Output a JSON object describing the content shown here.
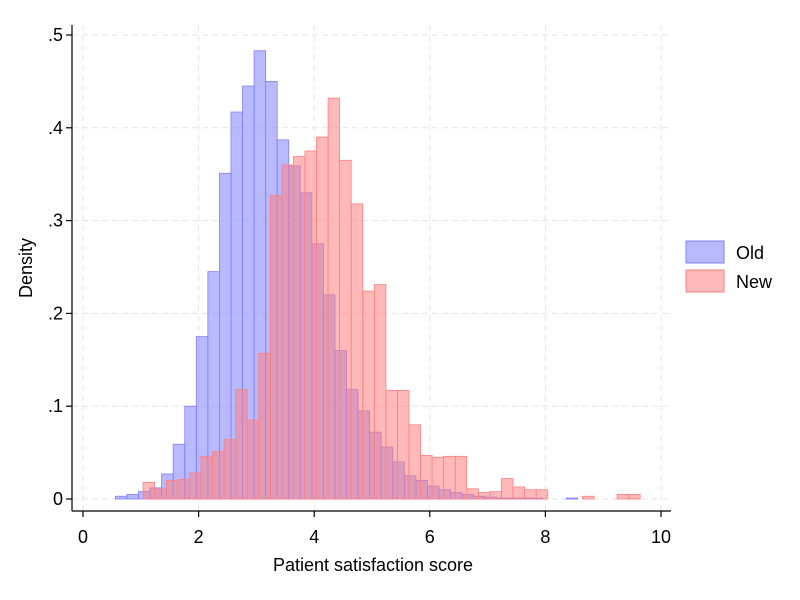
{
  "chart_data": {
    "type": "bar",
    "subtype": "overlaid-histogram",
    "title": "",
    "xlabel": "Patient satisfaction score",
    "ylabel": "Density",
    "xlim": [
      0,
      10
    ],
    "ylim": [
      0,
      0.5
    ],
    "xticks": [
      {
        "value": 0,
        "label": "0"
      },
      {
        "value": 2,
        "label": "2"
      },
      {
        "value": 4,
        "label": "4"
      },
      {
        "value": 6,
        "label": "6"
      },
      {
        "value": 8,
        "label": "8"
      },
      {
        "value": 10,
        "label": "10"
      }
    ],
    "yticks": [
      {
        "value": 0,
        "label": "0"
      },
      {
        "value": 0.1,
        "label": ".1"
      },
      {
        "value": 0.2,
        "label": ".2"
      },
      {
        "value": 0.3,
        "label": ".3"
      },
      {
        "value": 0.4,
        "label": ".4"
      },
      {
        "value": 0.5,
        "label": ".5"
      }
    ],
    "grid": true,
    "legend_position": "right",
    "series": [
      {
        "name": "Old",
        "color": "#8080ff",
        "bin_width": 0.2,
        "bins": [
          {
            "x0": 0.56,
            "v": 0.003
          },
          {
            "x0": 0.76,
            "v": 0.005
          },
          {
            "x0": 0.96,
            "v": 0.008
          },
          {
            "x0": 1.16,
            "v": 0.012
          },
          {
            "x0": 1.36,
            "v": 0.027
          },
          {
            "x0": 1.56,
            "v": 0.059
          },
          {
            "x0": 1.76,
            "v": 0.1
          },
          {
            "x0": 1.96,
            "v": 0.175
          },
          {
            "x0": 2.16,
            "v": 0.245
          },
          {
            "x0": 2.36,
            "v": 0.351
          },
          {
            "x0": 2.56,
            "v": 0.417
          },
          {
            "x0": 2.76,
            "v": 0.445
          },
          {
            "x0": 2.96,
            "v": 0.483
          },
          {
            "x0": 3.16,
            "v": 0.45
          },
          {
            "x0": 3.36,
            "v": 0.387
          },
          {
            "x0": 3.56,
            "v": 0.359
          },
          {
            "x0": 3.76,
            "v": 0.33
          },
          {
            "x0": 3.96,
            "v": 0.275
          },
          {
            "x0": 4.16,
            "v": 0.22
          },
          {
            "x0": 4.36,
            "v": 0.16
          },
          {
            "x0": 4.56,
            "v": 0.118
          },
          {
            "x0": 4.76,
            "v": 0.095
          },
          {
            "x0": 4.96,
            "v": 0.072
          },
          {
            "x0": 5.16,
            "v": 0.056
          },
          {
            "x0": 5.36,
            "v": 0.04
          },
          {
            "x0": 5.56,
            "v": 0.025
          },
          {
            "x0": 5.76,
            "v": 0.02
          },
          {
            "x0": 5.96,
            "v": 0.014
          },
          {
            "x0": 6.16,
            "v": 0.01
          },
          {
            "x0": 6.36,
            "v": 0.007
          },
          {
            "x0": 6.56,
            "v": 0.005
          },
          {
            "x0": 6.76,
            "v": 0.003
          },
          {
            "x0": 6.96,
            "v": 0.002
          },
          {
            "x0": 7.16,
            "v": 0.001
          },
          {
            "x0": 7.36,
            "v": 0.001
          },
          {
            "x0": 7.56,
            "v": 0.001
          },
          {
            "x0": 7.76,
            "v": 0.001
          },
          {
            "x0": 8.36,
            "v": 0.001
          }
        ]
      },
      {
        "name": "New",
        "color": "#ff8080",
        "bin_width": 0.2,
        "bins": [
          {
            "x0": 1.04,
            "v": 0.018
          },
          {
            "x0": 1.24,
            "v": 0.011
          },
          {
            "x0": 1.44,
            "v": 0.02
          },
          {
            "x0": 1.64,
            "v": 0.021
          },
          {
            "x0": 1.84,
            "v": 0.028
          },
          {
            "x0": 2.04,
            "v": 0.046
          },
          {
            "x0": 2.24,
            "v": 0.051
          },
          {
            "x0": 2.44,
            "v": 0.064
          },
          {
            "x0": 2.64,
            "v": 0.118
          },
          {
            "x0": 2.84,
            "v": 0.085
          },
          {
            "x0": 3.04,
            "v": 0.157
          },
          {
            "x0": 3.24,
            "v": 0.327
          },
          {
            "x0": 3.44,
            "v": 0.36
          },
          {
            "x0": 3.64,
            "v": 0.369
          },
          {
            "x0": 3.84,
            "v": 0.375
          },
          {
            "x0": 4.04,
            "v": 0.39
          },
          {
            "x0": 4.24,
            "v": 0.432
          },
          {
            "x0": 4.44,
            "v": 0.365
          },
          {
            "x0": 4.64,
            "v": 0.318
          },
          {
            "x0": 4.84,
            "v": 0.224
          },
          {
            "x0": 5.04,
            "v": 0.231
          },
          {
            "x0": 5.24,
            "v": 0.117
          },
          {
            "x0": 5.44,
            "v": 0.117
          },
          {
            "x0": 5.64,
            "v": 0.08
          },
          {
            "x0": 5.84,
            "v": 0.047
          },
          {
            "x0": 6.04,
            "v": 0.045
          },
          {
            "x0": 6.24,
            "v": 0.046
          },
          {
            "x0": 6.44,
            "v": 0.046
          },
          {
            "x0": 6.64,
            "v": 0.011
          },
          {
            "x0": 6.84,
            "v": 0.007
          },
          {
            "x0": 7.04,
            "v": 0.008
          },
          {
            "x0": 7.24,
            "v": 0.022
          },
          {
            "x0": 7.44,
            "v": 0.013
          },
          {
            "x0": 7.64,
            "v": 0.01
          },
          {
            "x0": 7.84,
            "v": 0.01
          },
          {
            "x0": 8.64,
            "v": 0.003
          },
          {
            "x0": 9.24,
            "v": 0.005
          },
          {
            "x0": 9.44,
            "v": 0.005
          }
        ]
      }
    ]
  }
}
